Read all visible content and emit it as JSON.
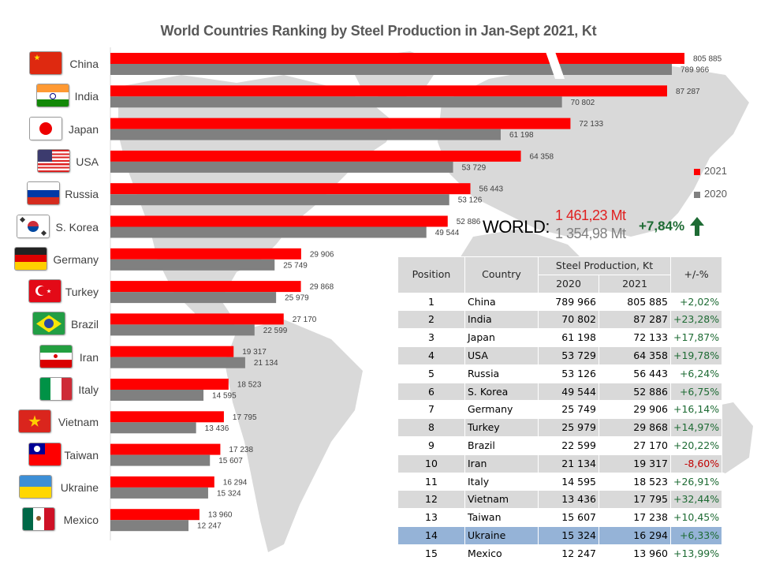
{
  "chart_data": {
    "type": "bar",
    "orientation": "horizontal",
    "title": "World Countries Ranking by Steel Production in Jan-Sept 2021, Kt",
    "xlabel": "",
    "ylabel": "",
    "unit": "Kt",
    "axis_break": "China bars truncated with break marks",
    "grid": false,
    "legend_position": "right",
    "categories": [
      "China",
      "India",
      "Japan",
      "USA",
      "Russia",
      "S. Korea",
      "Germany",
      "Turkey",
      "Brazil",
      "Iran",
      "Italy",
      "Vietnam",
      "Taiwan",
      "Ukraine",
      "Mexico"
    ],
    "series": [
      {
        "name": "2021",
        "color": "#ff0000",
        "values": [
          805885,
          87287,
          72133,
          64358,
          56443,
          52886,
          29906,
          29868,
          27170,
          19317,
          18523,
          17795,
          17238,
          16294,
          13960
        ],
        "labels": [
          "805 885",
          "87 287",
          "72 133",
          "64 358",
          "56 443",
          "52 886",
          "29 906",
          "29 868",
          "27 170",
          "19 317",
          "18 523",
          "17 795",
          "17 238",
          "16 294",
          "13 960"
        ]
      },
      {
        "name": "2020",
        "color": "#808080",
        "values": [
          789966,
          70802,
          61198,
          53729,
          53126,
          49544,
          25749,
          25979,
          22599,
          21134,
          14595,
          13436,
          15607,
          15324,
          12247
        ],
        "labels": [
          "789 966",
          "70 802",
          "61 198",
          "53 729",
          "53 126",
          "49 544",
          "25 749",
          "25 979",
          "22 599",
          "21 134",
          "14 595",
          "13 436",
          "15 607",
          "15 324",
          "12 247"
        ]
      }
    ]
  },
  "flags": [
    "china-flag-icon",
    "india-flag-icon",
    "japan-flag-icon",
    "usa-flag-icon",
    "russia-flag-icon",
    "south-korea-flag-icon",
    "germany-flag-icon",
    "turkey-flag-icon",
    "brazil-flag-icon",
    "iran-flag-icon",
    "italy-flag-icon",
    "vietnam-flag-icon",
    "taiwan-flag-icon",
    "ukraine-flag-icon",
    "mexico-flag-icon"
  ],
  "legend": {
    "items": [
      {
        "label": "2021",
        "color": "#ff0000"
      },
      {
        "label": "2020",
        "color": "#808080"
      }
    ]
  },
  "world": {
    "label": "WORLD:",
    "value_2021": "1 461,23 Mt",
    "value_2020": "1 354,98 Mt",
    "change": "+7,84%",
    "trend_icon": "arrow-up-icon"
  },
  "table": {
    "headers": {
      "position": "Position",
      "country": "Country",
      "production": "Steel Production, Kt",
      "y2020": "2020",
      "y2021": "2021",
      "change": "+/-%"
    },
    "highlight_row": 14,
    "rows": [
      {
        "position": "1",
        "country": "China",
        "v2020": "789 966",
        "v2021": "805 885",
        "change": "+2,02%"
      },
      {
        "position": "2",
        "country": "India",
        "v2020": "70 802",
        "v2021": "87 287",
        "change": "+23,28%"
      },
      {
        "position": "3",
        "country": "Japan",
        "v2020": "61 198",
        "v2021": "72 133",
        "change": "+17,87%"
      },
      {
        "position": "4",
        "country": "USA",
        "v2020": "53 729",
        "v2021": "64 358",
        "change": "+19,78%"
      },
      {
        "position": "5",
        "country": "Russia",
        "v2020": "53 126",
        "v2021": "56 443",
        "change": "+6,24%"
      },
      {
        "position": "6",
        "country": "S. Korea",
        "v2020": "49 544",
        "v2021": "52 886",
        "change": "+6,75%"
      },
      {
        "position": "7",
        "country": "Germany",
        "v2020": "25 749",
        "v2021": "29 906",
        "change": "+16,14%"
      },
      {
        "position": "8",
        "country": "Turkey",
        "v2020": "25 979",
        "v2021": "29 868",
        "change": "+14,97%"
      },
      {
        "position": "9",
        "country": "Brazil",
        "v2020": "22 599",
        "v2021": "27 170",
        "change": "+20,22%"
      },
      {
        "position": "10",
        "country": "Iran",
        "v2020": "21 134",
        "v2021": "19 317",
        "change": "-8,60%"
      },
      {
        "position": "11",
        "country": "Italy",
        "v2020": "14 595",
        "v2021": "18 523",
        "change": "+26,91%"
      },
      {
        "position": "12",
        "country": "Vietnam",
        "v2020": "13 436",
        "v2021": "17 795",
        "change": "+32,44%"
      },
      {
        "position": "13",
        "country": "Taiwan",
        "v2020": "15 607",
        "v2021": "17 238",
        "change": "+10,45%"
      },
      {
        "position": "14",
        "country": "Ukraine",
        "v2020": "15 324",
        "v2021": "16 294",
        "change": "+6,33%"
      },
      {
        "position": "15",
        "country": "Mexico",
        "v2020": "12 247",
        "v2021": "13 960",
        "change": "+13,99%"
      }
    ]
  }
}
